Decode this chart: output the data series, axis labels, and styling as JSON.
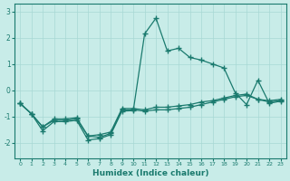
{
  "xlabel": "Humidex (Indice chaleur)",
  "bg_color": "#c8ece8",
  "grid_color": "#a8d8d4",
  "line_color": "#1a7a6e",
  "xlim": [
    -0.5,
    23.5
  ],
  "ylim": [
    -2.6,
    3.3
  ],
  "yticks": [
    -2,
    -1,
    0,
    1,
    2,
    3
  ],
  "xticks": [
    0,
    1,
    2,
    3,
    4,
    5,
    6,
    7,
    8,
    9,
    10,
    11,
    12,
    13,
    14,
    15,
    16,
    17,
    18,
    19,
    20,
    21,
    22,
    23
  ],
  "line1_y": [
    -0.5,
    -0.9,
    -1.55,
    -1.2,
    -1.2,
    -1.15,
    -1.9,
    -1.85,
    -1.7,
    -0.8,
    -0.78,
    2.15,
    2.75,
    1.5,
    1.6,
    1.25,
    1.15,
    1.0,
    0.85,
    -0.1,
    -0.55,
    0.38,
    -0.5,
    -0.42
  ],
  "line2_y": [
    -0.5,
    -0.9,
    -1.4,
    -1.15,
    -1.15,
    -1.1,
    -1.75,
    -1.8,
    -1.65,
    -0.75,
    -0.75,
    -0.8,
    -0.75,
    -0.75,
    -0.7,
    -0.65,
    -0.55,
    -0.45,
    -0.35,
    -0.25,
    -0.2,
    -0.35,
    -0.45,
    -0.4
  ],
  "line3_y": [
    -0.5,
    -0.9,
    -1.4,
    -1.1,
    -1.1,
    -1.05,
    -1.75,
    -1.7,
    -1.6,
    -0.7,
    -0.7,
    -0.75,
    -0.65,
    -0.65,
    -0.6,
    -0.55,
    -0.45,
    -0.4,
    -0.3,
    -0.2,
    -0.15,
    -0.35,
    -0.4,
    -0.35
  ],
  "figsize": [
    3.2,
    2.0
  ],
  "dpi": 100
}
